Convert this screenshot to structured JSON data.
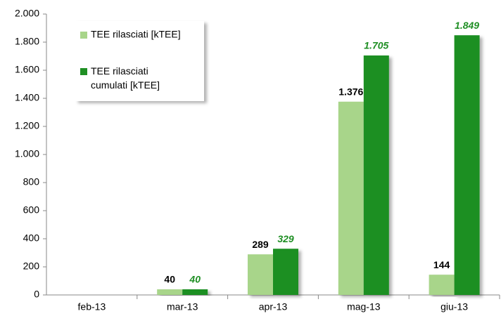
{
  "chart_data": {
    "type": "bar",
    "categories": [
      "feb-13",
      "mar-13",
      "apr-13",
      "mag-13",
      "giu-13"
    ],
    "series": [
      {
        "name": "TEE rilasciati [kTEE]",
        "color": "#a8d58a",
        "values": [
          null,
          40,
          289,
          1376,
          144
        ],
        "value_labels": [
          null,
          "40",
          "289",
          "1.376",
          "144"
        ]
      },
      {
        "name": "TEE rilasciati cumulati [kTEE]",
        "color": "#1f8f24",
        "values": [
          null,
          40,
          329,
          1705,
          1849
        ],
        "value_labels": [
          null,
          "40",
          "329",
          "1.705",
          "1.849"
        ]
      }
    ],
    "ylim": [
      0,
      2000
    ],
    "yticks": [
      0,
      200,
      400,
      600,
      800,
      {
        "value": 1000,
        "label": "1.000"
      },
      {
        "value": 1200,
        "label": "1.200"
      },
      {
        "value": 1400,
        "label": "1.400"
      },
      {
        "value": 1600,
        "label": "1.600"
      },
      {
        "value": 1800,
        "label": "1.800"
      },
      {
        "value": 2000,
        "label": "2.000"
      }
    ],
    "grid": false,
    "legend": "upper left"
  }
}
